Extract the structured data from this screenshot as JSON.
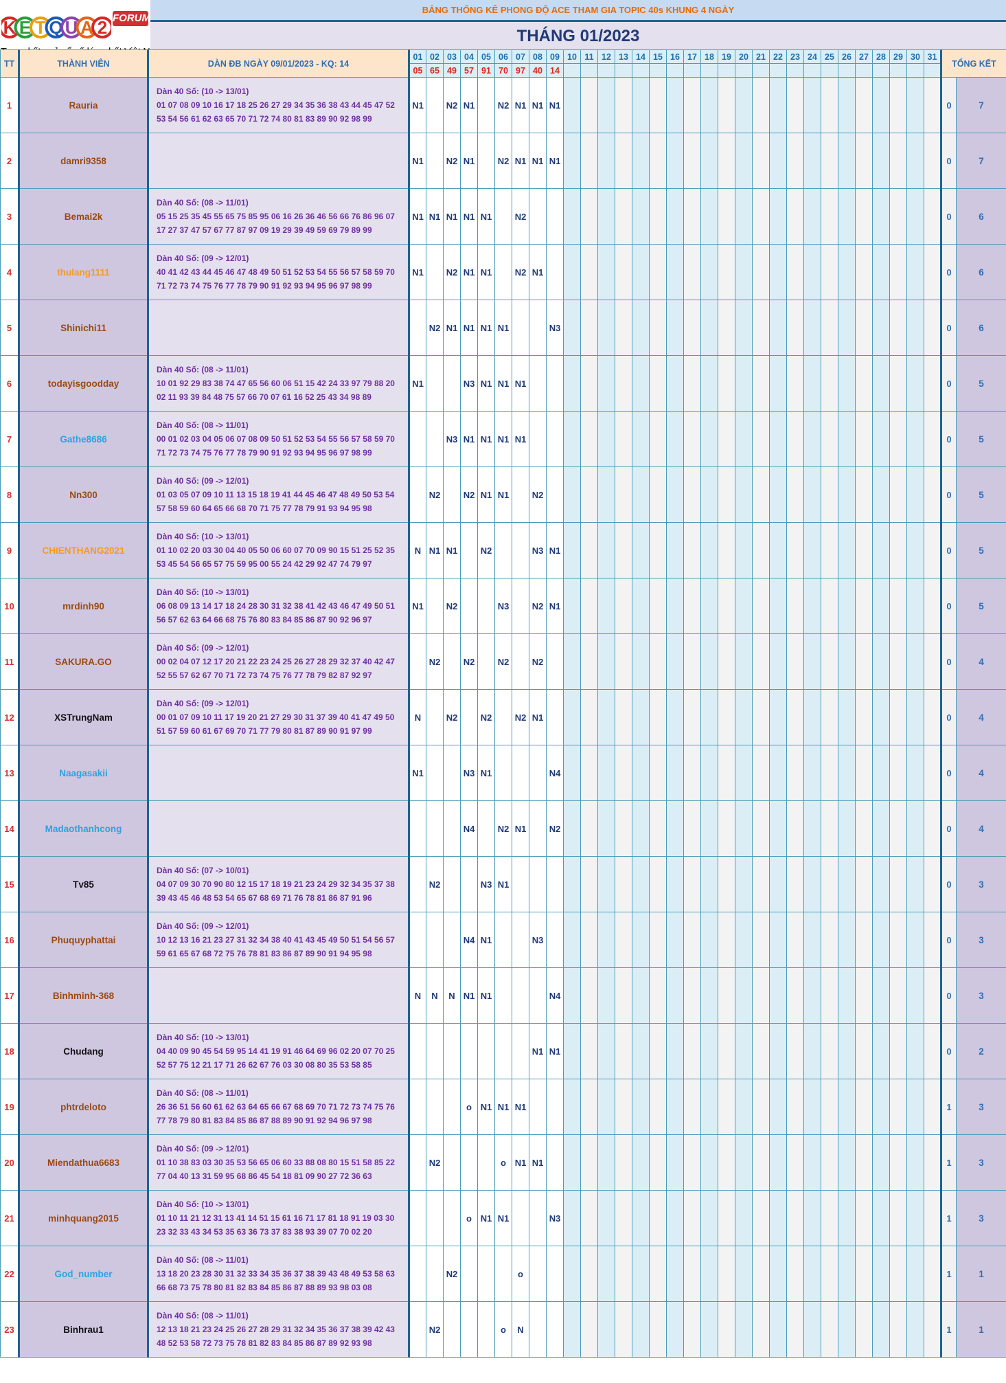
{
  "logo": {
    "letters": [
      "K",
      "E",
      "T",
      "Q",
      "U",
      "A",
      "2"
    ],
    "letter_colors": [
      "#d62828",
      "#2a9d3a",
      "#e9a10b",
      "#1e5bb8",
      "#8e44ad",
      "#e0671b",
      "#d62828"
    ],
    "forum_badge": "FORUM",
    "tagline": "Trang kết quả xổ số lớn nhất Việt Nam"
  },
  "title": "BẢNG THỐNG KÊ PHONG ĐỘ ACE THAM GIA TOPIC 40s KHUNG 4 NGÀY",
  "month": "THÁNG 01/2023",
  "headers": {
    "tt": "TT",
    "member": "THÀNH VIÊN",
    "dan": "DÀN ĐB NGÀY 09/01/2023 - KQ: 14",
    "total": "TỔNG KẾT"
  },
  "days": [
    "01",
    "02",
    "03",
    "04",
    "05",
    "06",
    "07",
    "08",
    "09",
    "10",
    "11",
    "12",
    "13",
    "14",
    "15",
    "16",
    "17",
    "18",
    "19",
    "20",
    "21",
    "22",
    "23",
    "24",
    "25",
    "26",
    "27",
    "28",
    "29",
    "30",
    "31"
  ],
  "results": [
    "05",
    "65",
    "49",
    "57",
    "91",
    "70",
    "97",
    "40",
    "14",
    "",
    "",
    "",
    "",
    "",
    "",
    "",
    "",
    "",
    "",
    "",
    "",
    "",
    "",
    "",
    "",
    "",
    "",
    "",
    "",
    "",
    ""
  ],
  "rows": [
    {
      "tt": "1",
      "name": "Rauria",
      "color": "brown",
      "dan1": "Dàn 40 Số: (10 -> 13/01)",
      "dan2": "01 07 08 09 10 16 17 18 25 26 27 29 34 35 36 38 43 44 45 47 52",
      "dan3": "53 54 56 61 62 63 65 70 71 72 74 80 81 83 89 90 92 98 99",
      "marks": [
        "N1",
        "",
        "N2",
        "N1",
        "",
        "N2",
        "N1",
        "N1",
        "N1"
      ],
      "zero": "0",
      "total": "7"
    },
    {
      "tt": "2",
      "name": "damri9358",
      "color": "brown",
      "dan1": "",
      "dan2": "",
      "dan3": "",
      "marks": [
        "N1",
        "",
        "N2",
        "N1",
        "",
        "N2",
        "N1",
        "N1",
        "N1"
      ],
      "zero": "0",
      "total": "7"
    },
    {
      "tt": "3",
      "name": "Bemai2k",
      "color": "brown",
      "dan1": "Dàn 40 Số: (08 -> 11/01)",
      "dan2": "05 15 25 35 45 55 65 75 85 95 06 16 26 36 46 56 66 76 86 96 07",
      "dan3": "17 27 37 47 57 67 77 87 97 09 19 29 39 49 59 69 79 89 99",
      "marks": [
        "N1",
        "N1",
        "N1",
        "N1",
        "N1",
        "",
        "N2",
        "",
        ""
      ],
      "zero": "0",
      "total": "6"
    },
    {
      "tt": "4",
      "name": "thulang1111",
      "color": "orange",
      "dan1": "Dàn 40 Số: (09 -> 12/01)",
      "dan2": "40 41 42 43 44 45 46 47 48 49 50 51 52 53 54 55 56 57 58 59 70",
      "dan3": "71 72 73 74 75 76 77 78 79 90 91 92 93 94 95 96 97 98 99",
      "marks": [
        "N1",
        "",
        "N2",
        "N1",
        "N1",
        "",
        "N2",
        "N1",
        ""
      ],
      "zero": "0",
      "total": "6"
    },
    {
      "tt": "5",
      "name": "Shinichi11",
      "color": "brown",
      "dan1": "",
      "dan2": "",
      "dan3": "",
      "marks": [
        "",
        "N2",
        "N1",
        "N1",
        "N1",
        "N1",
        "",
        "",
        "N3"
      ],
      "zero": "0",
      "total": "6"
    },
    {
      "tt": "6",
      "name": "todayisgoodday",
      "color": "brown",
      "dan1": "Dàn 40 Số: (08 -> 11/01)",
      "dan2": "10 01 92 29 83 38 74 47 65 56 60 06 51 15 42 24 33 97 79 88 20",
      "dan3": "02 11 93 39 84 48 75 57 66 70 07 61 16 52 25 43 34 98 89",
      "marks": [
        "N1",
        "",
        "",
        "N3",
        "N1",
        "N1",
        "N1",
        "",
        ""
      ],
      "zero": "0",
      "total": "5"
    },
    {
      "tt": "7",
      "name": "Gathe8686",
      "color": "blue",
      "dan1": "Dàn 40 Số: (08 -> 11/01)",
      "dan2": "00 01 02 03 04 05 06 07 08 09 50 51 52 53 54 55 56 57 58 59 70",
      "dan3": "71 72 73 74 75 76 77 78 79 90 91 92 93 94 95 96 97 98 99",
      "marks": [
        "",
        "",
        "N3",
        "N1",
        "N1",
        "N1",
        "N1",
        "",
        ""
      ],
      "zero": "0",
      "total": "5"
    },
    {
      "tt": "8",
      "name": "Nn300",
      "color": "brown",
      "dan1": "Dàn 40 Số: (09 -> 12/01)",
      "dan2": "01 03 05 07 09 10 11 13 15 18 19 41 44 45 46 47 48 49 50 53 54",
      "dan3": "57 58 59 60 64 65 66 68 70 71 75 77 78 79 91 93 94 95 98",
      "marks": [
        "",
        "N2",
        "",
        "N2",
        "N1",
        "N1",
        "",
        "N2",
        ""
      ],
      "zero": "0",
      "total": "5"
    },
    {
      "tt": "9",
      "name": "CHIENTHANG2021",
      "color": "orange",
      "dan1": "Dàn 40 Số: (10 -> 13/01)",
      "dan2": "01 10 02 20 03 30 04 40 05 50 06 60 07 70 09 90 15 51 25 52 35",
      "dan3": "53 45 54 56 65 57 75 59 95 00 55 24 42 29 92 47 74 79 97",
      "marks": [
        "N",
        "N1",
        "N1",
        "",
        "N2",
        "",
        "",
        "N3",
        "N1"
      ],
      "zero": "0",
      "total": "5"
    },
    {
      "tt": "10",
      "name": "mrdinh90",
      "color": "brown",
      "dan1": "Dàn 40 Số: (10 -> 13/01)",
      "dan2": "06 08 09 13 14 17 18 24 28 30 31 32 38 41 42 43 46 47 49 50 51",
      "dan3": "56 57 62 63 64 66 68 75 76 80 83 84 85 86 87 90 92 96 97",
      "marks": [
        "N1",
        "",
        "N2",
        "",
        "",
        "N3",
        "",
        "N2",
        "N1"
      ],
      "zero": "0",
      "total": "5"
    },
    {
      "tt": "11",
      "name": "SAKURA.GO",
      "color": "brown",
      "dan1": "Dàn 40 Số: (09 -> 12/01)",
      "dan2": "00 02 04 07 12 17 20 21 22 23 24 25 26 27 28 29 32 37 40 42 47",
      "dan3": "52 55 57 62 67 70 71 72 73 74 75 76 77 78 79 82 87 92 97",
      "marks": [
        "",
        "N2",
        "",
        "N2",
        "",
        "N2",
        "",
        "N2",
        ""
      ],
      "zero": "0",
      "total": "4"
    },
    {
      "tt": "12",
      "name": "XSTrungNam",
      "color": "black",
      "dan1": "Dàn 40 Số: (09 -> 12/01)",
      "dan2": "00 01 07 09 10 11 17 19 20 21 27 29 30 31 37 39 40 41 47 49 50",
      "dan3": "51 57 59 60 61 67 69 70 71 77 79 80 81 87 89 90 91 97 99",
      "marks": [
        "N",
        "",
        "N2",
        "",
        "N2",
        "",
        "N2",
        "N1",
        ""
      ],
      "zero": "0",
      "total": "4"
    },
    {
      "tt": "13",
      "name": "Naagasakii",
      "color": "blue",
      "dan1": "",
      "dan2": "",
      "dan3": "",
      "marks": [
        "N1",
        "",
        "",
        "N3",
        "N1",
        "",
        "",
        "",
        "N4"
      ],
      "zero": "0",
      "total": "4"
    },
    {
      "tt": "14",
      "name": "Madaothanhcong",
      "color": "blue",
      "dan1": "",
      "dan2": "",
      "dan3": "",
      "marks": [
        "",
        "",
        "",
        "N4",
        "",
        "N2",
        "N1",
        "",
        "N2"
      ],
      "zero": "0",
      "total": "4"
    },
    {
      "tt": "15",
      "name": "Tv85",
      "color": "black",
      "dan1": "Dàn 40 Số: (07 -> 10/01)",
      "dan2": "04 07 09 30 70 90 80 12 15 17 18 19 21 23 24 29 32 34 35 37 38",
      "dan3": "39 43 45 46 48 53 54 65 67 68 69 71 76 78 81 86 87 91 96",
      "marks": [
        "",
        "N2",
        "",
        "",
        "N3",
        "N1",
        "",
        "",
        ""
      ],
      "zero": "0",
      "total": "3"
    },
    {
      "tt": "16",
      "name": "Phuquyphattai",
      "color": "brown",
      "dan1": "Dàn 40 Số: (09 -> 12/01)",
      "dan2": "10 12 13 16 21 23 27 31 32 34 38 40 41 43 45 49 50 51 54 56 57",
      "dan3": "59 61 65 67 68 72 75 76 78 81 83 86 87 89 90 91 94 95 98",
      "marks": [
        "",
        "",
        "",
        "N4",
        "N1",
        "",
        "",
        "N3",
        ""
      ],
      "zero": "0",
      "total": "3"
    },
    {
      "tt": "17",
      "name": "Binhminh-368",
      "color": "brown",
      "dan1": "",
      "dan2": "",
      "dan3": "",
      "marks": [
        "N",
        "N",
        "N",
        "N1",
        "N1",
        "",
        "",
        "",
        "N4"
      ],
      "zero": "0",
      "total": "3"
    },
    {
      "tt": "18",
      "name": "Chudang",
      "color": "black",
      "dan1": "Dàn 40 Số: (10 -> 13/01)",
      "dan2": "04 40 09 90 45 54 59 95 14 41 19 91 46 64 69 96 02 20 07 70 25",
      "dan3": "52 57 75 12 21 17 71 26 62 67 76 03 30 08 80 35 53 58 85",
      "marks": [
        "",
        "",
        "",
        "",
        "",
        "",
        "",
        "N1",
        "N1"
      ],
      "zero": "0",
      "total": "2"
    },
    {
      "tt": "19",
      "name": "phtrdeloto",
      "color": "brown",
      "dan1": "Dàn 40 Số: (08 -> 11/01)",
      "dan2": "26 36 51 56 60 61 62 63 64 65 66 67 68 69 70 71 72 73 74 75 76",
      "dan3": "77 78 79 80 81 83 84 85 86 87 88 89 90 91 92 94 96 97 98",
      "marks": [
        "",
        "",
        "",
        "o",
        "N1",
        "N1",
        "N1",
        "",
        ""
      ],
      "zero": "1",
      "total": "3"
    },
    {
      "tt": "20",
      "name": "Miendathua6683",
      "color": "brown",
      "dan1": "Dàn 40 Số: (09 -> 12/01)",
      "dan2": "01 10 38 83 03 30 35 53 56 65 06 60 33 88 08 80 15 51 58 85 22",
      "dan3": "77 04 40 13 31 59 95 68 86 45 54 18 81 09 90 27 72 36 63",
      "marks": [
        "",
        "N2",
        "",
        "",
        "",
        "o",
        "N1",
        "N1",
        ""
      ],
      "zero": "1",
      "total": "3"
    },
    {
      "tt": "21",
      "name": "minhquang2015",
      "color": "brown",
      "dan1": "Dàn 40 Số: (10 -> 13/01)",
      "dan2": "01 10 11 21 12 31 13 41 14 51 15 61 16 71 17 81 18 91 19 03 30",
      "dan3": "23 32 33 43 34 53 35 63 36 73 37 83 38 93 39 07 70 02 20",
      "marks": [
        "",
        "",
        "",
        "o",
        "N1",
        "N1",
        "",
        "",
        "N3"
      ],
      "zero": "1",
      "total": "3"
    },
    {
      "tt": "22",
      "name": "God_number",
      "color": "blue",
      "dan1": "Dàn 40 Số: (08 -> 11/01)",
      "dan2": "13 18 20 23 28 30 31 32 33 34 35 36 37 38 39 43 48 49 53 58 63",
      "dan3": "66 68 73 75 78 80 81 82 83 84 85 86 87 88 89 93 98 03 08",
      "marks": [
        "",
        "",
        "N2",
        "",
        "",
        "",
        "o",
        "",
        ""
      ],
      "zero": "1",
      "total": "1"
    },
    {
      "tt": "23",
      "name": "Binhrau1",
      "color": "black",
      "dan1": "Dàn 40 Số: (08 -> 11/01)",
      "dan2": "12 13 18 21 23 24 25 26 27 28 29 31 32 34 35 36 37 38 39 42 43",
      "dan3": "48 52 53 58 72 73 75 78 81 82 83 84 85 86 87 89 92 93 98",
      "marks": [
        "",
        "N2",
        "",
        "",
        "",
        "o",
        "N",
        "",
        ""
      ],
      "zero": "1",
      "total": "1"
    }
  ]
}
